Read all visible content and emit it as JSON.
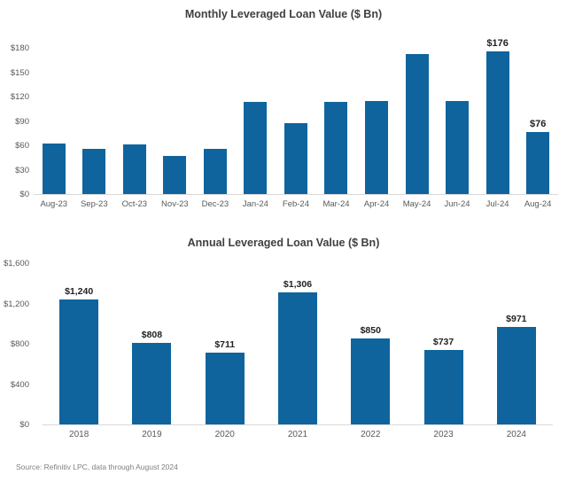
{
  "colors": {
    "bar_fill": "#0F649E",
    "title_text": "#404040",
    "axis_tick_text": "#595959",
    "data_label_text": "#222222",
    "axis_baseline": "#d9d9d9",
    "source_text": "#808080",
    "background": "#ffffff"
  },
  "source_note": "Source: Refinitiv LPC, data through August 2024",
  "chart_data": [
    {
      "type": "bar",
      "title": "Monthly Leveraged Loan Value ($ Bn)",
      "categories": [
        "Aug-23",
        "Sep-23",
        "Oct-23",
        "Nov-23",
        "Dec-23",
        "Jan-24",
        "Feb-24",
        "Mar-24",
        "Apr-24",
        "May-24",
        "Jun-24",
        "Jul-24",
        "Aug-24"
      ],
      "values": [
        62,
        56,
        61,
        47,
        56,
        113,
        87,
        113,
        115,
        172,
        115,
        176,
        76
      ],
      "point_labels": [
        null,
        null,
        null,
        null,
        null,
        null,
        null,
        null,
        null,
        null,
        null,
        "$176",
        "$76"
      ],
      "xlabel": "",
      "ylabel": "",
      "ylim": [
        0,
        180
      ],
      "ytick_labels": [
        "$180",
        "$150",
        "$120",
        "$90",
        "$60",
        "$30",
        "$0"
      ],
      "grid": false,
      "legend": "none"
    },
    {
      "type": "bar",
      "title": "Annual Leveraged Loan Value ($ Bn)",
      "categories": [
        "2018",
        "2019",
        "2020",
        "2021",
        "2022",
        "2023",
        "2024"
      ],
      "values": [
        1240,
        808,
        711,
        1306,
        850,
        737,
        971
      ],
      "point_labels": [
        "$1,240",
        "$808",
        "$711",
        "$1,306",
        "$850",
        "$737",
        "$971"
      ],
      "xlabel": "",
      "ylabel": "",
      "ylim": [
        0,
        1600
      ],
      "ytick_labels": [
        "$1,600",
        "$1,200",
        "$800",
        "$400",
        "$0"
      ],
      "grid": false,
      "legend": "none"
    }
  ]
}
